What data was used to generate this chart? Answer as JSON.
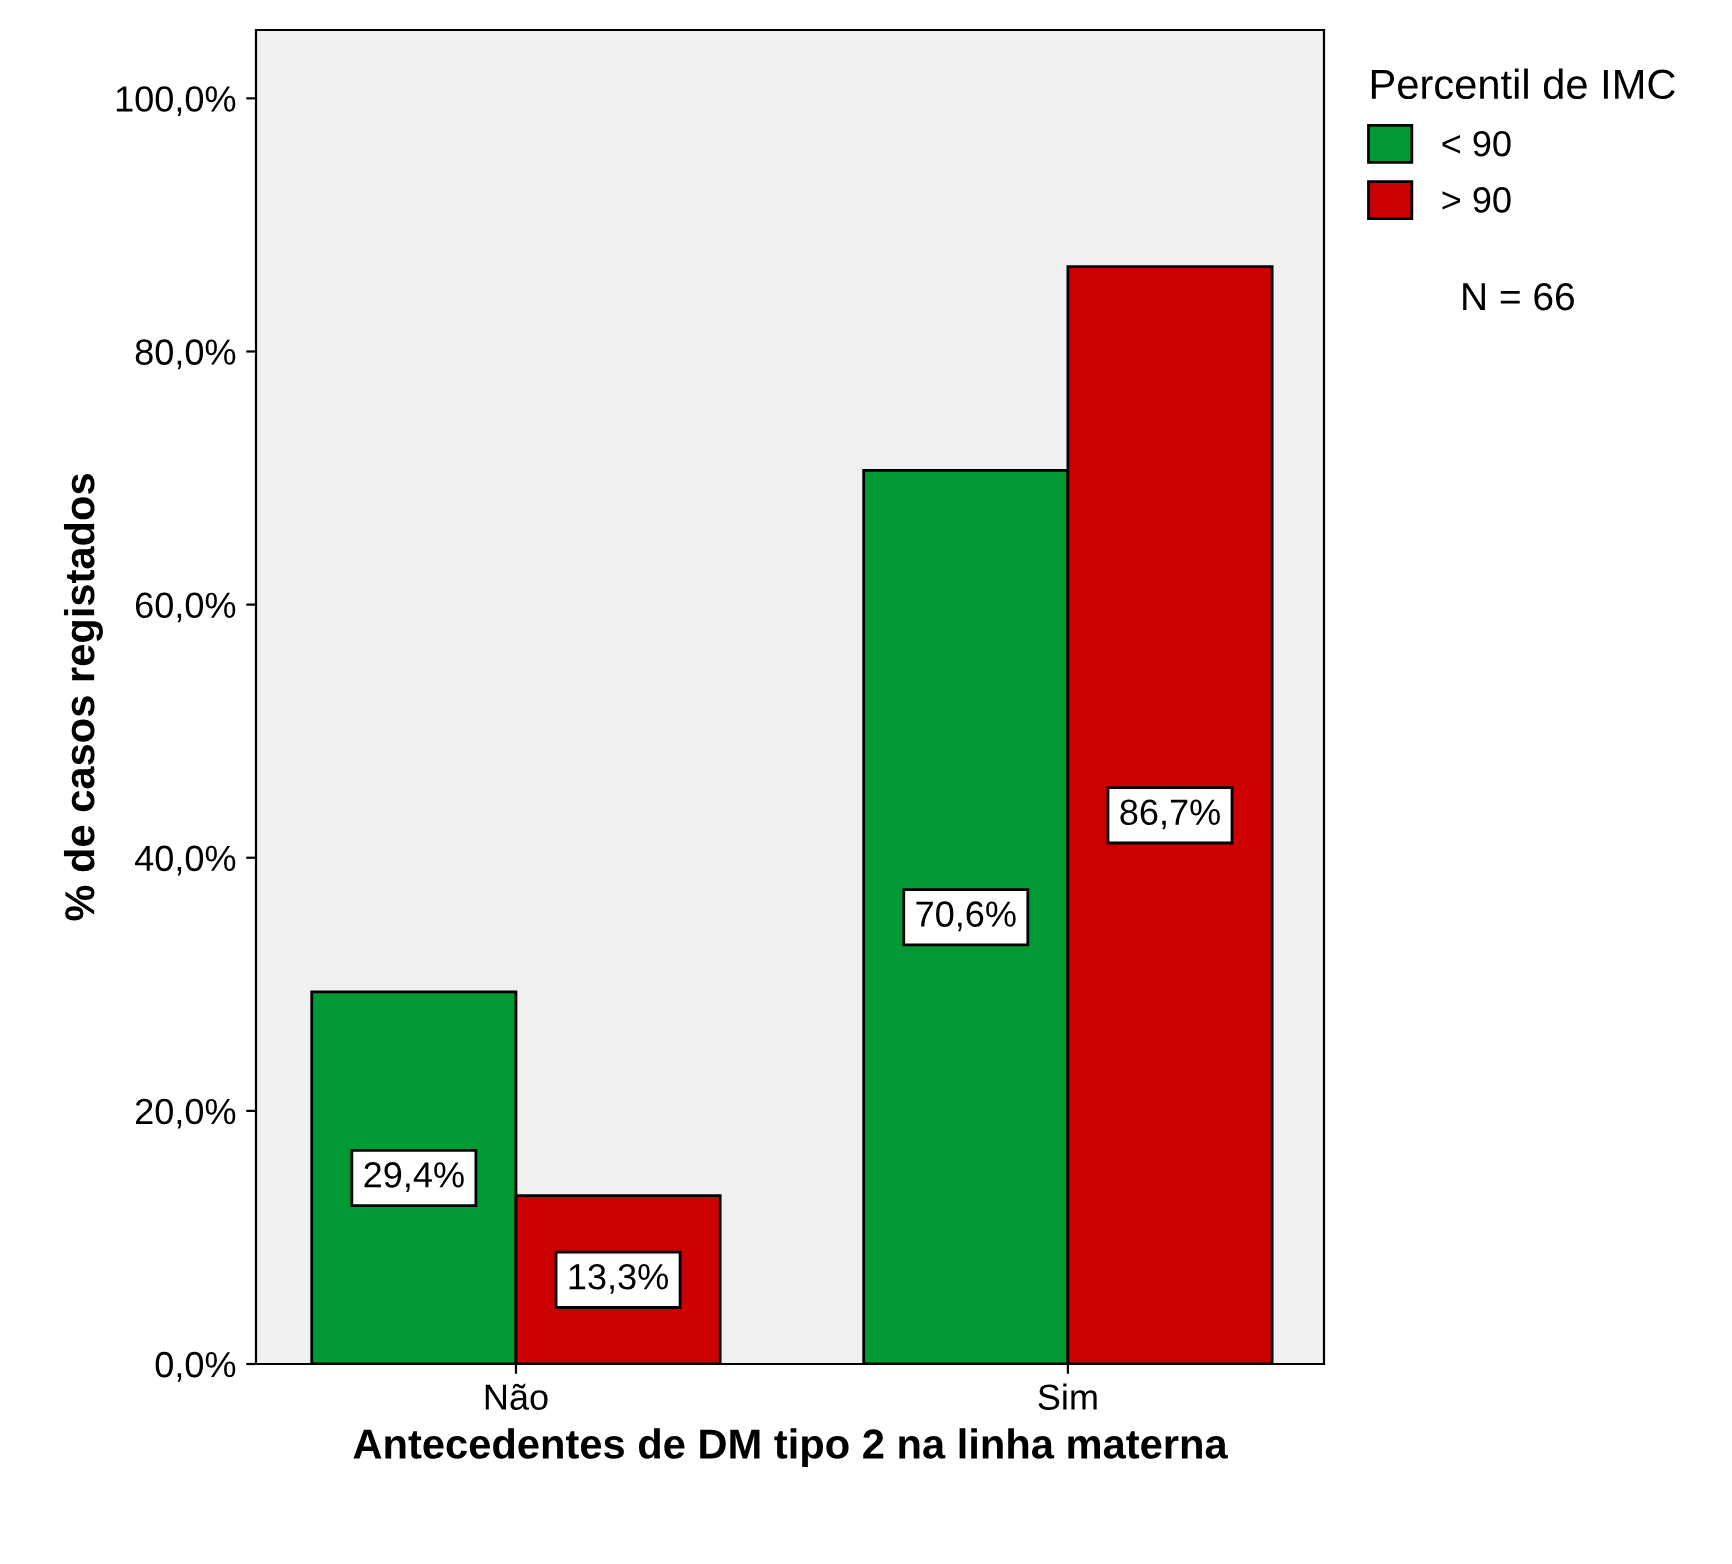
{
  "chart_data": {
    "type": "bar",
    "xlabel": "Antecedentes de DM tipo 2 na linha materna",
    "ylabel": "% de casos registados",
    "legend_title": "Percentil de IMC",
    "categories": [
      "Não",
      "Sim"
    ],
    "series": [
      {
        "name": "< 90",
        "color": "#009933",
        "values": [
          29.4,
          70.6
        ],
        "value_labels": [
          "29,4%",
          "70,6%"
        ]
      },
      {
        "name": "> 90",
        "color": "#cc0000",
        "values": [
          13.3,
          86.7
        ],
        "value_labels": [
          "13,3%",
          "86,7%"
        ]
      }
    ],
    "ylim": [
      0,
      105.4
    ],
    "yticks": [
      {
        "value": 0,
        "label": "0,0%"
      },
      {
        "value": 20,
        "label": "20,0%"
      },
      {
        "value": 40,
        "label": "40,0%"
      },
      {
        "value": 60,
        "label": "60,0%"
      },
      {
        "value": 80,
        "label": "80,0%"
      },
      {
        "value": 100,
        "label": "100,0%"
      }
    ],
    "grid": false,
    "legend": "top right",
    "annotations": [
      "N = 66"
    ]
  }
}
